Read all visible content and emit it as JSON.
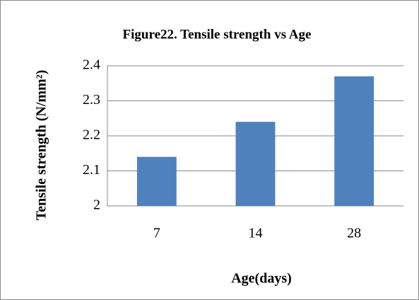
{
  "chart_data": {
    "type": "bar",
    "title": "Figure22. Tensile strength vs Age",
    "x_label": "Age(days)",
    "y_label": "Tensile strength (N/mm²)",
    "categories": [
      "7",
      "14",
      "28"
    ],
    "values": [
      2.14,
      2.24,
      2.37
    ],
    "color": "#4f81bd",
    "ylim": [
      2,
      2.4
    ],
    "yticks": [
      2,
      2.1,
      2.2,
      2.3,
      2.4
    ],
    "grid": true
  }
}
